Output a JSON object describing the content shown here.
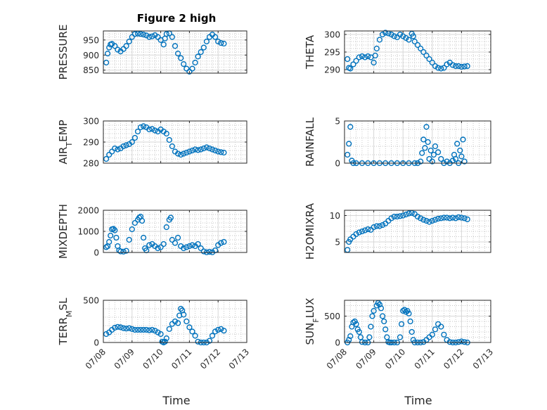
{
  "figure": {
    "title": "Figure 2 high",
    "xlabel": "Time"
  },
  "colors": {
    "marker": "#0072BD",
    "axis": "#262626",
    "grid": "#d7d7d7",
    "minor_grid": "#b4b4b4"
  },
  "chart_data": [
    {
      "type": "scatter",
      "ylabel": "PRESSURE",
      "ylim": [
        840,
        980
      ],
      "yticks": [
        850,
        900,
        950
      ],
      "xticks": [
        "07/08",
        "07/09",
        "07/10",
        "07/11",
        "07/12",
        "07/13"
      ],
      "grid": true,
      "series": [
        {
          "x": [
            0.1,
            0.15,
            0.2,
            0.25,
            0.3,
            0.4,
            0.5,
            0.6,
            0.7,
            0.8,
            0.9,
            1.0,
            1.1,
            1.2,
            1.3,
            1.4,
            1.5,
            1.6,
            1.7,
            1.8,
            1.9,
            2.0,
            2.1,
            2.15,
            2.2,
            2.3,
            2.4,
            2.5,
            2.6,
            2.7,
            2.8,
            2.9,
            3.0,
            3.1,
            3.2,
            3.3,
            3.4,
            3.5,
            3.6,
            3.7,
            3.8,
            3.9,
            4.0,
            4.1,
            4.2
          ],
          "y": [
            875,
            905,
            925,
            935,
            937,
            930,
            918,
            912,
            920,
            930,
            945,
            960,
            970,
            971,
            970,
            968,
            965,
            960,
            962,
            966,
            960,
            950,
            935,
            955,
            970,
            972,
            960,
            930,
            905,
            890,
            870,
            855,
            845,
            855,
            875,
            895,
            910,
            925,
            945,
            960,
            968,
            960,
            945,
            940,
            938
          ]
        }
      ]
    },
    {
      "type": "scatter",
      "ylabel": "THETA",
      "ylim": [
        289,
        301
      ],
      "yticks": [
        290,
        295,
        300
      ],
      "xticks": [
        "07/08",
        "07/09",
        "07/10",
        "07/11",
        "07/12",
        "07/13"
      ],
      "grid": true,
      "series": [
        {
          "x": [
            0.1,
            0.15,
            0.2,
            0.3,
            0.4,
            0.5,
            0.6,
            0.7,
            0.8,
            0.9,
            1.0,
            1.05,
            1.1,
            1.2,
            1.3,
            1.4,
            1.5,
            1.6,
            1.7,
            1.8,
            1.9,
            2.0,
            2.1,
            2.2,
            2.3,
            2.35,
            2.4,
            2.5,
            2.6,
            2.7,
            2.8,
            2.9,
            3.0,
            3.1,
            3.2,
            3.3,
            3.4,
            3.5,
            3.6,
            3.7,
            3.8,
            3.9,
            4.0,
            4.1,
            4.2
          ],
          "y": [
            293,
            290.5,
            290.3,
            291.5,
            292.5,
            293.5,
            293.8,
            293.5,
            293.8,
            293.5,
            292,
            294,
            296,
            298.5,
            300,
            300.5,
            300.3,
            300,
            299.5,
            299.2,
            300,
            299.5,
            299,
            298.5,
            300.2,
            299.5,
            298,
            297,
            296,
            295,
            294,
            293,
            292,
            291,
            290.5,
            290.3,
            290.5,
            291.5,
            292,
            291.3,
            291,
            291,
            290.8,
            290.9,
            291
          ]
        }
      ]
    },
    {
      "type": "scatter",
      "ylabel": "AIR_TEMP",
      "ylim": [
        280,
        300
      ],
      "yticks": [
        280,
        290,
        300
      ],
      "xticks": [
        "07/08",
        "07/09",
        "07/10",
        "07/11",
        "07/12",
        "07/13"
      ],
      "grid": true,
      "series": [
        {
          "x": [
            0.1,
            0.2,
            0.3,
            0.4,
            0.5,
            0.6,
            0.7,
            0.8,
            0.9,
            1.0,
            1.1,
            1.2,
            1.3,
            1.4,
            1.5,
            1.6,
            1.7,
            1.8,
            1.9,
            2.0,
            2.1,
            2.2,
            2.3,
            2.4,
            2.5,
            2.6,
            2.7,
            2.8,
            2.9,
            3.0,
            3.1,
            3.2,
            3.3,
            3.4,
            3.5,
            3.6,
            3.7,
            3.8,
            3.9,
            4.0,
            4.1,
            4.2
          ],
          "y": [
            282,
            284,
            285.5,
            287,
            286.5,
            287,
            288,
            288.5,
            289,
            290,
            292,
            295,
            297,
            297.5,
            297,
            296,
            296.2,
            295.5,
            295,
            296,
            295,
            294,
            291,
            288,
            285.5,
            284.5,
            284,
            284.5,
            285,
            285.5,
            286,
            286.5,
            286.2,
            286.5,
            287,
            287.5,
            287,
            286.5,
            286,
            285.5,
            285.2,
            285
          ]
        }
      ]
    },
    {
      "type": "scatter",
      "ylabel": "RAINFALL",
      "ylim": [
        0,
        5
      ],
      "yticks": [
        0,
        5
      ],
      "xticks": [
        "07/08",
        "07/09",
        "07/10",
        "07/11",
        "07/12",
        "07/13"
      ],
      "grid": true,
      "series": [
        {
          "x": [
            0.1,
            0.15,
            0.2,
            0.25,
            0.3,
            0.4,
            0.6,
            0.8,
            1.0,
            1.2,
            1.4,
            1.6,
            1.8,
            2.0,
            2.2,
            2.4,
            2.5,
            2.6,
            2.65,
            2.7,
            2.75,
            2.8,
            2.85,
            2.9,
            2.95,
            3.0,
            3.05,
            3.1,
            3.2,
            3.3,
            3.4,
            3.5,
            3.6,
            3.7,
            3.75,
            3.8,
            3.85,
            3.9,
            3.95,
            4.0,
            4.05,
            4.1
          ],
          "y": [
            1,
            2.3,
            4.3,
            0.3,
            0,
            0,
            0,
            0,
            0,
            0,
            0,
            0,
            0,
            0,
            0,
            0,
            0,
            0.2,
            1.2,
            2.8,
            1.8,
            4.3,
            2.5,
            0.5,
            1.5,
            0.2,
            1.0,
            2.0,
            1.3,
            0.5,
            0,
            0.2,
            0,
            0.3,
            1.0,
            0.5,
            2.3,
            0,
            1.5,
            0.8,
            2.8,
            0.2
          ]
        }
      ]
    },
    {
      "type": "scatter",
      "ylabel": "MIXDEPTH",
      "ylim": [
        0,
        2000
      ],
      "yticks": [
        0,
        1000,
        2000
      ],
      "xticks": [
        "07/08",
        "07/09",
        "07/10",
        "07/11",
        "07/12",
        "07/13"
      ],
      "grid": true,
      "series": [
        {
          "x": [
            0.1,
            0.15,
            0.2,
            0.25,
            0.3,
            0.35,
            0.4,
            0.45,
            0.5,
            0.55,
            0.6,
            0.7,
            0.8,
            0.9,
            1.0,
            1.1,
            1.2,
            1.25,
            1.3,
            1.35,
            1.4,
            1.45,
            1.5,
            1.6,
            1.7,
            1.8,
            1.9,
            2.0,
            2.1,
            2.2,
            2.3,
            2.35,
            2.4,
            2.5,
            2.6,
            2.7,
            2.8,
            2.9,
            3.0,
            3.1,
            3.2,
            3.3,
            3.4,
            3.5,
            3.6,
            3.7,
            3.8,
            3.9,
            4.0,
            4.1,
            4.2
          ],
          "y": [
            250,
            300,
            500,
            800,
            1100,
            1120,
            1050,
            700,
            300,
            100,
            50,
            40,
            80,
            600,
            1100,
            1400,
            1550,
            1650,
            1700,
            1500,
            700,
            200,
            100,
            350,
            400,
            300,
            200,
            250,
            400,
            1200,
            1550,
            1650,
            600,
            450,
            700,
            300,
            200,
            250,
            300,
            350,
            300,
            400,
            200,
            50,
            10,
            30,
            10,
            100,
            350,
            450,
            500
          ]
        }
      ]
    },
    {
      "type": "scatter",
      "ylabel": "H2OMIXRA",
      "ylim": [
        3,
        11
      ],
      "yticks": [
        5,
        10
      ],
      "xticks": [
        "07/08",
        "07/09",
        "07/10",
        "07/11",
        "07/12",
        "07/13"
      ],
      "grid": true,
      "series": [
        {
          "x": [
            0.1,
            0.15,
            0.2,
            0.3,
            0.4,
            0.5,
            0.6,
            0.7,
            0.8,
            0.9,
            1.0,
            1.1,
            1.2,
            1.3,
            1.4,
            1.5,
            1.6,
            1.7,
            1.8,
            1.9,
            2.0,
            2.1,
            2.2,
            2.3,
            2.4,
            2.5,
            2.6,
            2.7,
            2.8,
            2.9,
            3.0,
            3.1,
            3.2,
            3.3,
            3.4,
            3.5,
            3.6,
            3.7,
            3.8,
            3.9,
            4.0,
            4.1,
            4.2
          ],
          "y": [
            3.5,
            5,
            5.5,
            6,
            6.5,
            6.8,
            7,
            7.2,
            7.4,
            7.3,
            7.8,
            8,
            8,
            8.2,
            8.5,
            9,
            9.5,
            9.8,
            9.8,
            9.9,
            10,
            10.2,
            10.4,
            10.5,
            10.3,
            9.8,
            9.5,
            9.2,
            9,
            8.8,
            9,
            9.2,
            9.4,
            9.5,
            9.6,
            9.6,
            9.5,
            9.6,
            9.5,
            9.7,
            9.6,
            9.5,
            9.3
          ]
        }
      ]
    },
    {
      "type": "scatter",
      "ylabel": "TERR_MSL",
      "ylim": [
        0,
        500
      ],
      "yticks": [
        0,
        500
      ],
      "xticks": [
        "07/08",
        "07/09",
        "07/10",
        "07/11",
        "07/12",
        "07/13"
      ],
      "grid": true,
      "series": [
        {
          "x": [
            0.1,
            0.2,
            0.3,
            0.4,
            0.5,
            0.6,
            0.7,
            0.8,
            0.9,
            1.0,
            1.1,
            1.2,
            1.3,
            1.4,
            1.5,
            1.6,
            1.7,
            1.8,
            1.9,
            2.0,
            2.05,
            2.1,
            2.15,
            2.2,
            2.3,
            2.4,
            2.5,
            2.6,
            2.65,
            2.7,
            2.75,
            2.8,
            2.9,
            3.0,
            3.1,
            3.2,
            3.3,
            3.4,
            3.5,
            3.6,
            3.7,
            3.8,
            3.9,
            4.0,
            4.1,
            4.2
          ],
          "y": [
            100,
            120,
            150,
            175,
            185,
            180,
            170,
            165,
            170,
            160,
            150,
            150,
            150,
            150,
            150,
            145,
            150,
            140,
            120,
            100,
            10,
            0,
            10,
            50,
            160,
            220,
            250,
            230,
            320,
            400,
            380,
            330,
            250,
            180,
            130,
            80,
            10,
            0,
            0,
            0,
            20,
            80,
            130,
            150,
            160,
            140
          ]
        }
      ]
    },
    {
      "type": "scatter",
      "ylabel": "SUN_FLUX",
      "ylim": [
        0,
        800
      ],
      "yticks": [
        0,
        500
      ],
      "xticks": [
        "07/08",
        "07/09",
        "07/10",
        "07/11",
        "07/12",
        "07/13"
      ],
      "grid": true,
      "series": [
        {
          "x": [
            0.1,
            0.15,
            0.2,
            0.25,
            0.3,
            0.35,
            0.4,
            0.45,
            0.5,
            0.55,
            0.6,
            0.7,
            0.8,
            0.85,
            0.9,
            0.95,
            1.0,
            1.1,
            1.15,
            1.2,
            1.25,
            1.3,
            1.35,
            1.4,
            1.45,
            1.5,
            1.55,
            1.6,
            1.7,
            1.8,
            1.9,
            1.95,
            2.0,
            2.05,
            2.1,
            2.15,
            2.2,
            2.25,
            2.3,
            2.35,
            2.4,
            2.5,
            2.6,
            2.7,
            2.8,
            2.9,
            3.0,
            3.1,
            3.2,
            3.3,
            3.4,
            3.5,
            3.6,
            3.7,
            3.8,
            3.9,
            4.0,
            4.1,
            4.2
          ],
          "y": [
            0,
            50,
            120,
            300,
            380,
            400,
            350,
            250,
            200,
            100,
            10,
            0,
            0,
            100,
            300,
            500,
            600,
            700,
            750,
            720,
            650,
            500,
            400,
            250,
            100,
            10,
            0,
            0,
            0,
            0,
            100,
            350,
            600,
            620,
            580,
            600,
            550,
            400,
            200,
            50,
            0,
            0,
            0,
            10,
            50,
            100,
            150,
            250,
            350,
            300,
            150,
            50,
            10,
            0,
            0,
            10,
            20,
            10,
            0
          ]
        }
      ]
    }
  ]
}
